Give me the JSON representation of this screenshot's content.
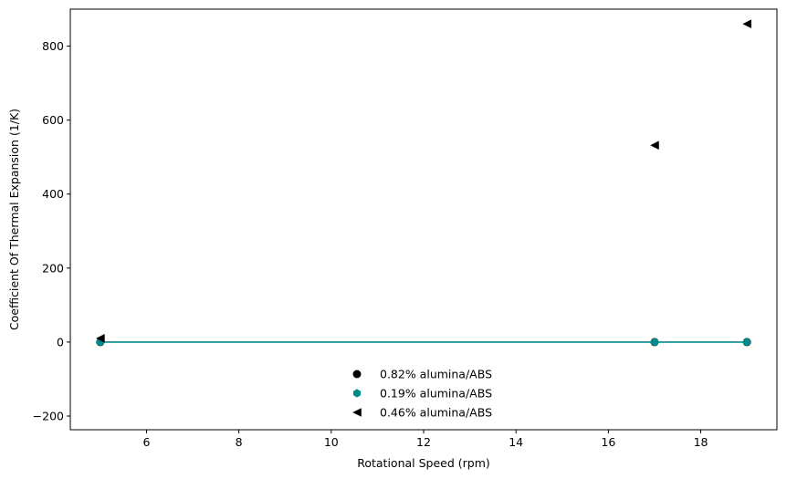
{
  "chart_data": {
    "type": "scatter",
    "xlabel": "Rotational Speed (rpm)",
    "ylabel": "Coefficient Of Thermal Expansion (1/K)",
    "xlim": [
      4.35,
      19.65
    ],
    "ylim": [
      -237,
      900
    ],
    "x_ticks": [
      6,
      8,
      10,
      12,
      14,
      16,
      18
    ],
    "y_ticks": [
      -200,
      0,
      200,
      400,
      600,
      800
    ],
    "x_tick_labels": [
      "6",
      "8",
      "10",
      "12",
      "14",
      "16",
      "18"
    ],
    "y_tick_labels": [
      "−200",
      "0",
      "200",
      "400",
      "600",
      "800"
    ],
    "grid": false,
    "legend_position": "lower-center",
    "series": [
      {
        "name": "0.82% alumina/ABS",
        "marker": "circle",
        "color": "#000000",
        "x": [
          5,
          17,
          19
        ],
        "y": [
          0,
          0,
          0
        ]
      },
      {
        "name": "0.19% alumina/ABS",
        "marker": "hexagon",
        "color": "#008b8b",
        "x": [
          5,
          17,
          19
        ],
        "y": [
          0,
          0,
          0
        ],
        "line": true
      },
      {
        "name": "0.46% alumina/ABS",
        "marker": "triangle-left",
        "color": "#000000",
        "x": [
          5,
          17,
          19
        ],
        "y": [
          10,
          532,
          860
        ]
      }
    ]
  }
}
